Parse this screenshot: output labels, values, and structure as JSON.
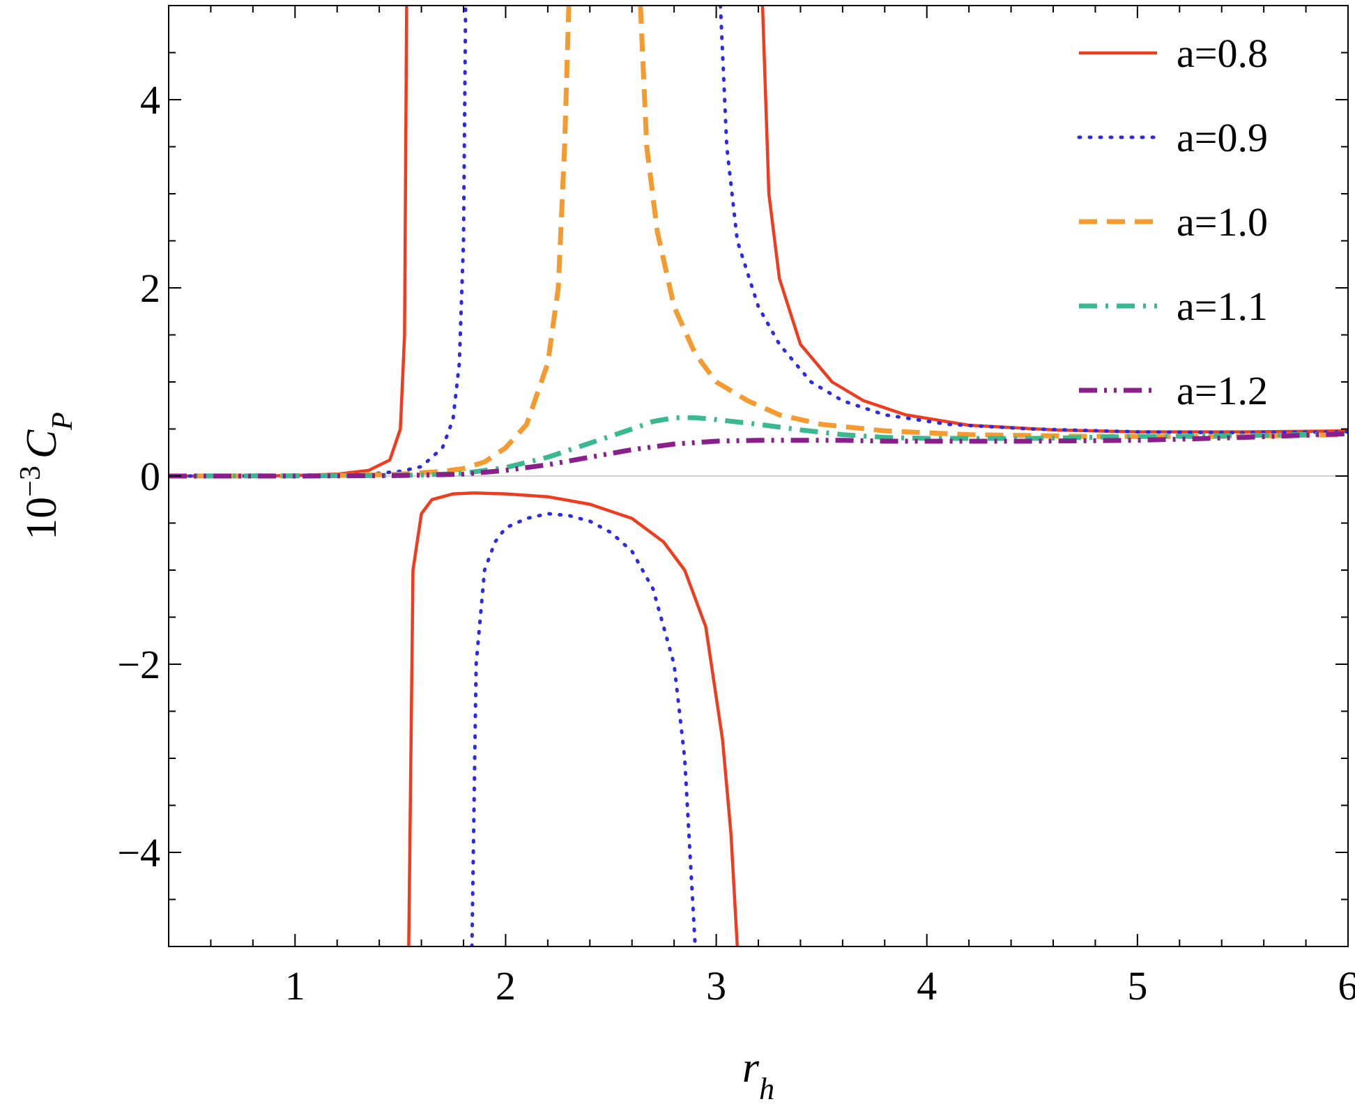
{
  "chart_data": {
    "type": "line",
    "title": "",
    "xlabel": "r_h",
    "xlabel_main": "r",
    "xlabel_sub": "h",
    "ylabel": "10^-3 C_P",
    "ylabel_base": "10",
    "ylabel_exp": "−3",
    "ylabel_var": "C",
    "ylabel_sub": "P",
    "xlim": [
      0.4,
      6
    ],
    "ylim": [
      -5,
      5
    ],
    "xticks": [
      1,
      2,
      3,
      4,
      5,
      6
    ],
    "xtick_labels": [
      "1",
      "2",
      "3",
      "4",
      "5",
      "6"
    ],
    "yticks": [
      -4,
      -2,
      0,
      2,
      4
    ],
    "ytick_labels": [
      "−4",
      "−2",
      "0",
      "2",
      "4"
    ],
    "grid": false,
    "zero_line": true,
    "legend_position": "top-right",
    "series": [
      {
        "name": "a=0.8",
        "color": "#F03C1E",
        "dash": "solid",
        "segments": [
          [
            [
              0.4,
              0.0
            ],
            [
              0.8,
              0.0
            ],
            [
              1.0,
              0.005
            ],
            [
              1.2,
              0.02
            ],
            [
              1.35,
              0.06
            ],
            [
              1.45,
              0.17
            ],
            [
              1.5,
              0.5
            ],
            [
              1.52,
              1.5
            ],
            [
              1.53,
              5.0
            ]
          ],
          [
            [
              1.54,
              -5.0
            ],
            [
              1.56,
              -1.0
            ],
            [
              1.6,
              -0.4
            ],
            [
              1.65,
              -0.25
            ],
            [
              1.75,
              -0.19
            ],
            [
              1.85,
              -0.18
            ],
            [
              2.0,
              -0.19
            ],
            [
              2.2,
              -0.22
            ],
            [
              2.4,
              -0.3
            ],
            [
              2.6,
              -0.45
            ],
            [
              2.75,
              -0.7
            ],
            [
              2.85,
              -1.0
            ],
            [
              2.95,
              -1.6
            ],
            [
              3.03,
              -2.8
            ],
            [
              3.07,
              -3.8
            ],
            [
              3.1,
              -5.0
            ]
          ],
          [
            [
              3.22,
              5.0
            ],
            [
              3.25,
              3.0
            ],
            [
              3.3,
              2.1
            ],
            [
              3.4,
              1.4
            ],
            [
              3.55,
              1.0
            ],
            [
              3.7,
              0.8
            ],
            [
              3.9,
              0.65
            ],
            [
              4.2,
              0.54
            ],
            [
              4.6,
              0.49
            ],
            [
              5.0,
              0.47
            ],
            [
              5.5,
              0.47
            ],
            [
              6.0,
              0.48
            ]
          ]
        ]
      },
      {
        "name": "a=0.9",
        "color": "#2A2AE8",
        "dash": "dotted",
        "segments": [
          [
            [
              0.4,
              0.0
            ],
            [
              1.0,
              0.002
            ],
            [
              1.3,
              0.01
            ],
            [
              1.5,
              0.05
            ],
            [
              1.6,
              0.1
            ],
            [
              1.7,
              0.3
            ],
            [
              1.75,
              0.6
            ],
            [
              1.78,
              1.2
            ],
            [
              1.8,
              2.5
            ],
            [
              1.81,
              5.0
            ]
          ],
          [
            [
              1.84,
              -5.0
            ],
            [
              1.86,
              -2.0
            ],
            [
              1.9,
              -1.0
            ],
            [
              1.95,
              -0.7
            ],
            [
              2.0,
              -0.55
            ],
            [
              2.1,
              -0.45
            ],
            [
              2.2,
              -0.4
            ],
            [
              2.3,
              -0.42
            ],
            [
              2.4,
              -0.48
            ],
            [
              2.5,
              -0.6
            ],
            [
              2.6,
              -0.8
            ],
            [
              2.7,
              -1.2
            ],
            [
              2.8,
              -2.0
            ],
            [
              2.85,
              -3.0
            ],
            [
              2.9,
              -5.0
            ]
          ],
          [
            [
              3.02,
              5.0
            ],
            [
              3.05,
              3.5
            ],
            [
              3.1,
              2.5
            ],
            [
              3.2,
              1.8
            ],
            [
              3.3,
              1.4
            ],
            [
              3.45,
              1.0
            ],
            [
              3.6,
              0.8
            ],
            [
              3.8,
              0.65
            ],
            [
              4.1,
              0.55
            ],
            [
              4.5,
              0.5
            ],
            [
              5.0,
              0.47
            ],
            [
              5.5,
              0.46
            ],
            [
              6.0,
              0.47
            ]
          ]
        ]
      },
      {
        "name": "a=1.0",
        "color": "#F59A2E",
        "dash": "dashed",
        "segments": [
          [
            [
              0.4,
              0.0
            ],
            [
              1.0,
              0.002
            ],
            [
              1.3,
              0.008
            ],
            [
              1.5,
              0.02
            ],
            [
              1.7,
              0.05
            ],
            [
              1.8,
              0.08
            ],
            [
              1.9,
              0.15
            ],
            [
              2.0,
              0.3
            ],
            [
              2.1,
              0.55
            ],
            [
              2.2,
              1.2
            ],
            [
              2.25,
              2.0
            ],
            [
              2.28,
              3.5
            ],
            [
              2.3,
              5.0
            ]
          ],
          [
            [
              2.64,
              5.0
            ],
            [
              2.67,
              3.5
            ],
            [
              2.72,
              2.6
            ],
            [
              2.8,
              1.8
            ],
            [
              2.9,
              1.3
            ],
            [
              3.0,
              1.0
            ],
            [
              3.15,
              0.8
            ],
            [
              3.3,
              0.65
            ],
            [
              3.5,
              0.55
            ],
            [
              3.8,
              0.48
            ],
            [
              4.2,
              0.44
            ],
            [
              4.8,
              0.42
            ],
            [
              5.4,
              0.42
            ],
            [
              6.0,
              0.44
            ]
          ]
        ]
      },
      {
        "name": "a=1.1",
        "color": "#3AB890",
        "dash": "dashdot",
        "segments": [
          [
            [
              0.4,
              0.0
            ],
            [
              1.0,
              0.002
            ],
            [
              1.4,
              0.005
            ],
            [
              1.6,
              0.01
            ],
            [
              1.8,
              0.03
            ],
            [
              2.0,
              0.09
            ],
            [
              2.2,
              0.2
            ],
            [
              2.4,
              0.35
            ],
            [
              2.6,
              0.5
            ],
            [
              2.7,
              0.58
            ],
            [
              2.8,
              0.62
            ],
            [
              2.9,
              0.62
            ],
            [
              3.0,
              0.6
            ],
            [
              3.2,
              0.55
            ],
            [
              3.4,
              0.49
            ],
            [
              3.6,
              0.44
            ],
            [
              3.8,
              0.41
            ],
            [
              4.0,
              0.4
            ],
            [
              4.5,
              0.4
            ],
            [
              5.0,
              0.42
            ],
            [
              5.5,
              0.43
            ],
            [
              6.0,
              0.45
            ]
          ]
        ]
      },
      {
        "name": "a=1.2",
        "color": "#8A1E8C",
        "dash": "dashdotdot",
        "segments": [
          [
            [
              0.4,
              0.0
            ],
            [
              1.0,
              0.0
            ],
            [
              1.5,
              0.005
            ],
            [
              1.8,
              0.02
            ],
            [
              2.0,
              0.06
            ],
            [
              2.2,
              0.12
            ],
            [
              2.4,
              0.2
            ],
            [
              2.6,
              0.28
            ],
            [
              2.8,
              0.34
            ],
            [
              3.0,
              0.37
            ],
            [
              3.2,
              0.38
            ],
            [
              3.4,
              0.38
            ],
            [
              3.6,
              0.38
            ],
            [
              3.8,
              0.37
            ],
            [
              4.0,
              0.37
            ],
            [
              4.5,
              0.37
            ],
            [
              5.0,
              0.38
            ],
            [
              5.5,
              0.41
            ],
            [
              6.0,
              0.45
            ]
          ]
        ]
      }
    ]
  }
}
